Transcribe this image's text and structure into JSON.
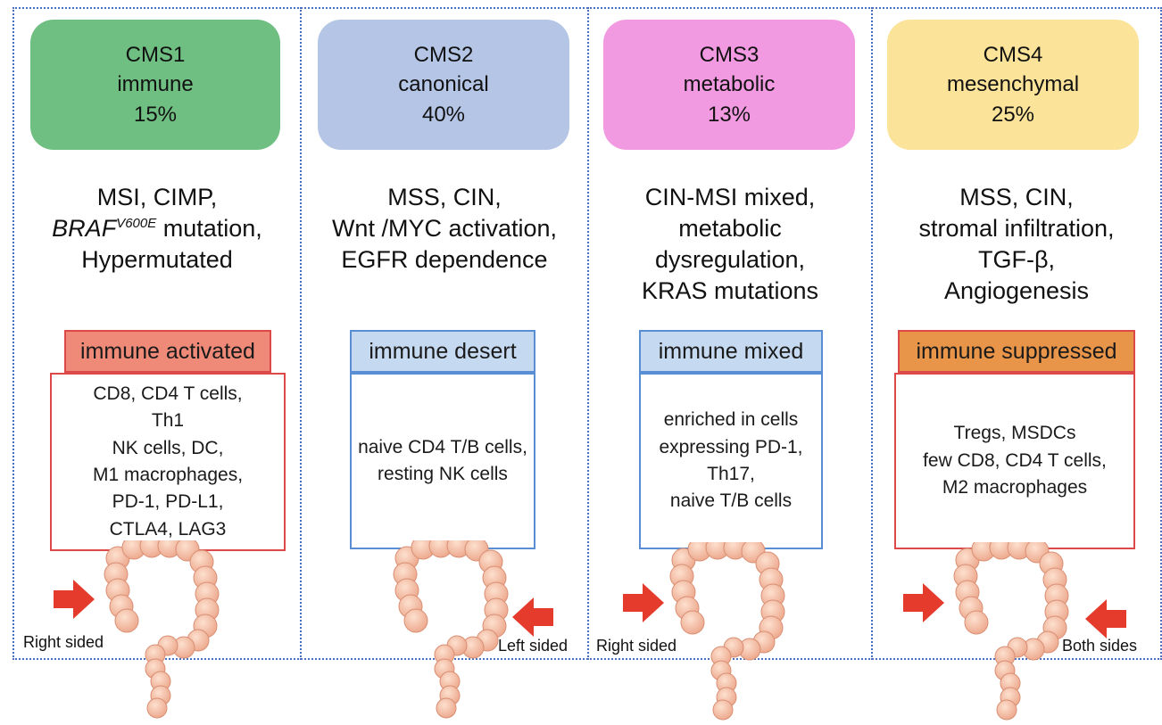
{
  "subtypes": [
    {
      "header": [
        "CMS1",
        "immune",
        "15%"
      ],
      "header_color": "#70bf82",
      "features": [
        "MSI, CIMP,",
        "mutation,",
        "Hypermutated"
      ],
      "braf_gene": "BRAF",
      "braf_sup": "V600E",
      "immune_label": "immune activated",
      "immune_color": "#ef8a78",
      "border_color": "#dd4848",
      "cells": [
        "CD8, CD4 T cells,",
        "Th1",
        "NK cells, DC,",
        "M1 macrophages,",
        "PD-1, PD-L1,",
        "CTLA4, LAG3"
      ],
      "side": "Right sided"
    },
    {
      "header": [
        "CMS2",
        "canonical",
        "40%"
      ],
      "header_color": "#b4c5e6",
      "features": [
        "MSS, CIN,",
        "Wnt /MYC activation,",
        "EGFR dependence"
      ],
      "immune_label": "immune desert",
      "immune_color": "#c5d9f0",
      "border_color": "#5a8ed4",
      "cells": [
        "naive CD4 T/B cells,",
        "resting NK cells"
      ],
      "side": "Left sided"
    },
    {
      "header": [
        "CMS3",
        "metabolic",
        "13%"
      ],
      "header_color": "#f29ae1",
      "features": [
        "CIN-MSI mixed,",
        "metabolic",
        "dysregulation,",
        "KRAS mutations"
      ],
      "immune_label": "immune mixed",
      "immune_color": "#c5d9f0",
      "border_color": "#5a8ed4",
      "cells": [
        "enriched in cells",
        "expressing PD-1,",
        "Th17,",
        "naive T/B cells"
      ],
      "side": "Right sided"
    },
    {
      "header": [
        "CMS4",
        "mesenchymal",
        "25%"
      ],
      "header_color": "#fbe39a",
      "features": [
        "MSS, CIN,",
        "stromal infiltration,",
        "TGF-β,",
        "Angiogenesis"
      ],
      "immune_label": "immune suppressed",
      "immune_color": "#e8954a",
      "border_color": "#dd4848",
      "cells": [
        "Tregs, MSDCs",
        "few CD8, CD4 T cells,",
        "M2 macrophages"
      ],
      "side": "Both sides"
    }
  ]
}
